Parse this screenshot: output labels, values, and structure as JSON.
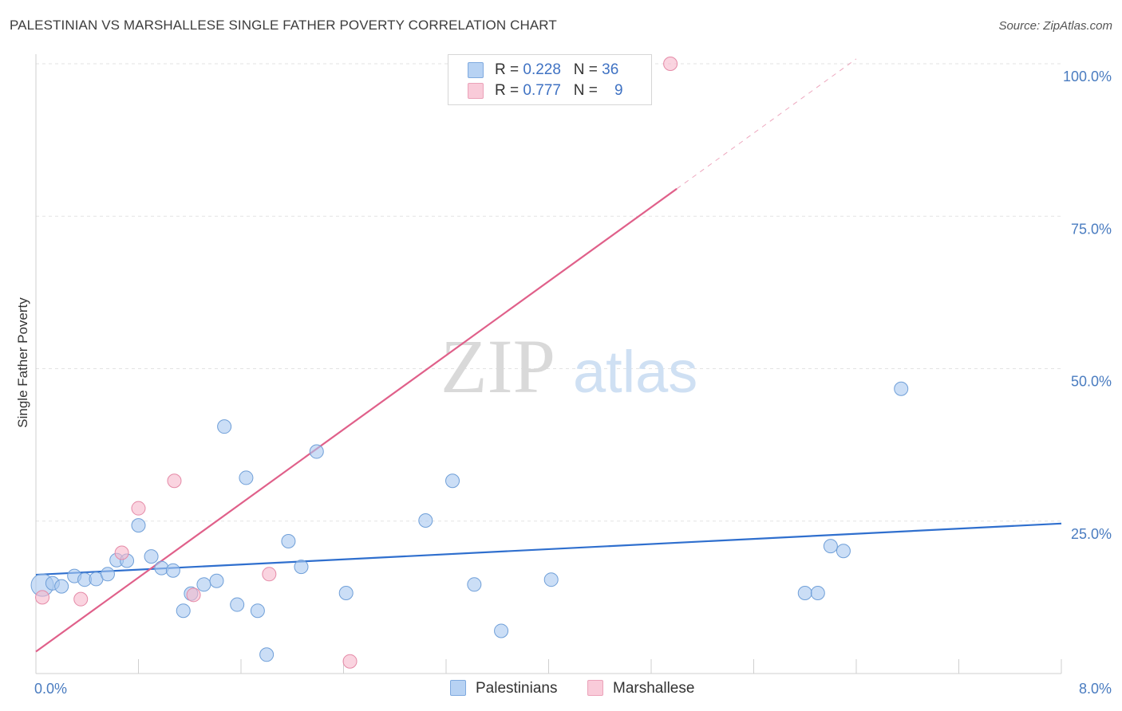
{
  "title": "PALESTINIAN VS MARSHALLESE SINGLE FATHER POVERTY CORRELATION CHART",
  "source": "Source: ZipAtlas.com",
  "watermark": {
    "zip": "ZIP",
    "atlas": "atlas"
  },
  "legend": {
    "rows": [
      {
        "r_label": "R = ",
        "r_value": "0.228",
        "n_label": "N = ",
        "n_value": "36",
        "color": "#a8c8f0"
      },
      {
        "r_label": "R = ",
        "r_value": "0.777",
        "n_label": "N = ",
        "n_value": "9",
        "color": "#f6b8cb"
      }
    ]
  },
  "bottom_legend": [
    {
      "label": "Palestinians",
      "color": "#a8c8f0"
    },
    {
      "label": "Marshallese",
      "color": "#f6b8cb"
    }
  ],
  "chart_data": {
    "type": "scatter",
    "title": "PALESTINIAN VS MARSHALLESE SINGLE FATHER POVERTY CORRELATION CHART",
    "xlabel": "",
    "ylabel": "Single Father Poverty",
    "xlim": [
      0,
      8
    ],
    "ylim": [
      0,
      100
    ],
    "x_tick_labels": [
      {
        "value": 0,
        "label": "0.0%"
      },
      {
        "value": 8,
        "label": "8.0%"
      }
    ],
    "y_ticks": [
      {
        "value": 25,
        "label": "25.0%"
      },
      {
        "value": 50,
        "label": "50.0%"
      },
      {
        "value": 75,
        "label": "75.0%"
      },
      {
        "value": 100,
        "label": "100.0%"
      }
    ],
    "grid": true,
    "legend_position": "top-center",
    "series": [
      {
        "name": "Palestinians",
        "color": "#a8c8f0",
        "stroke": "#6f9fd8",
        "trend_color": "#2f6fce",
        "trend": {
          "x0": 0,
          "y0": 16.2,
          "x1": 8,
          "y1": 24.6
        },
        "points": [
          {
            "x": 0.05,
            "y": 14.5,
            "big": true
          },
          {
            "x": 0.13,
            "y": 14.8
          },
          {
            "x": 0.2,
            "y": 14.3
          },
          {
            "x": 0.3,
            "y": 16.0
          },
          {
            "x": 0.38,
            "y": 15.4
          },
          {
            "x": 0.47,
            "y": 15.5
          },
          {
            "x": 0.56,
            "y": 16.3
          },
          {
            "x": 0.63,
            "y": 18.6
          },
          {
            "x": 0.71,
            "y": 18.5
          },
          {
            "x": 0.8,
            "y": 24.3
          },
          {
            "x": 0.9,
            "y": 19.2
          },
          {
            "x": 0.98,
            "y": 17.3
          },
          {
            "x": 1.07,
            "y": 16.9
          },
          {
            "x": 1.15,
            "y": 10.3
          },
          {
            "x": 1.21,
            "y": 13.1
          },
          {
            "x": 1.31,
            "y": 14.6
          },
          {
            "x": 1.41,
            "y": 15.2
          },
          {
            "x": 1.47,
            "y": 40.5
          },
          {
            "x": 1.57,
            "y": 11.3
          },
          {
            "x": 1.64,
            "y": 32.1
          },
          {
            "x": 1.73,
            "y": 10.3
          },
          {
            "x": 1.8,
            "y": 3.1
          },
          {
            "x": 1.97,
            "y": 21.7
          },
          {
            "x": 2.07,
            "y": 17.5
          },
          {
            "x": 2.19,
            "y": 36.4
          },
          {
            "x": 2.42,
            "y": 13.2
          },
          {
            "x": 3.04,
            "y": 25.1
          },
          {
            "x": 3.25,
            "y": 31.6
          },
          {
            "x": 3.42,
            "y": 14.6
          },
          {
            "x": 3.63,
            "y": 7.0
          },
          {
            "x": 4.02,
            "y": 15.4
          },
          {
            "x": 6.0,
            "y": 13.2
          },
          {
            "x": 6.1,
            "y": 13.2
          },
          {
            "x": 6.2,
            "y": 20.9
          },
          {
            "x": 6.3,
            "y": 20.1
          },
          {
            "x": 6.75,
            "y": 46.7
          }
        ]
      },
      {
        "name": "Marshallese",
        "color": "#f6b8cb",
        "stroke": "#e58aa7",
        "trend_color": "#e0608a",
        "trend": {
          "x0": 0,
          "y0": 3.6,
          "x1": 5.0,
          "y1": 79.5,
          "dash_x1": 6.4,
          "dash_y1": 100.8
        },
        "points": [
          {
            "x": 0.05,
            "y": 12.5
          },
          {
            "x": 0.35,
            "y": 12.2
          },
          {
            "x": 0.67,
            "y": 19.8
          },
          {
            "x": 0.8,
            "y": 27.1
          },
          {
            "x": 1.08,
            "y": 31.6
          },
          {
            "x": 1.23,
            "y": 12.9
          },
          {
            "x": 1.82,
            "y": 16.3
          },
          {
            "x": 2.45,
            "y": 2.0
          },
          {
            "x": 4.95,
            "y": 100.0
          }
        ]
      }
    ]
  }
}
